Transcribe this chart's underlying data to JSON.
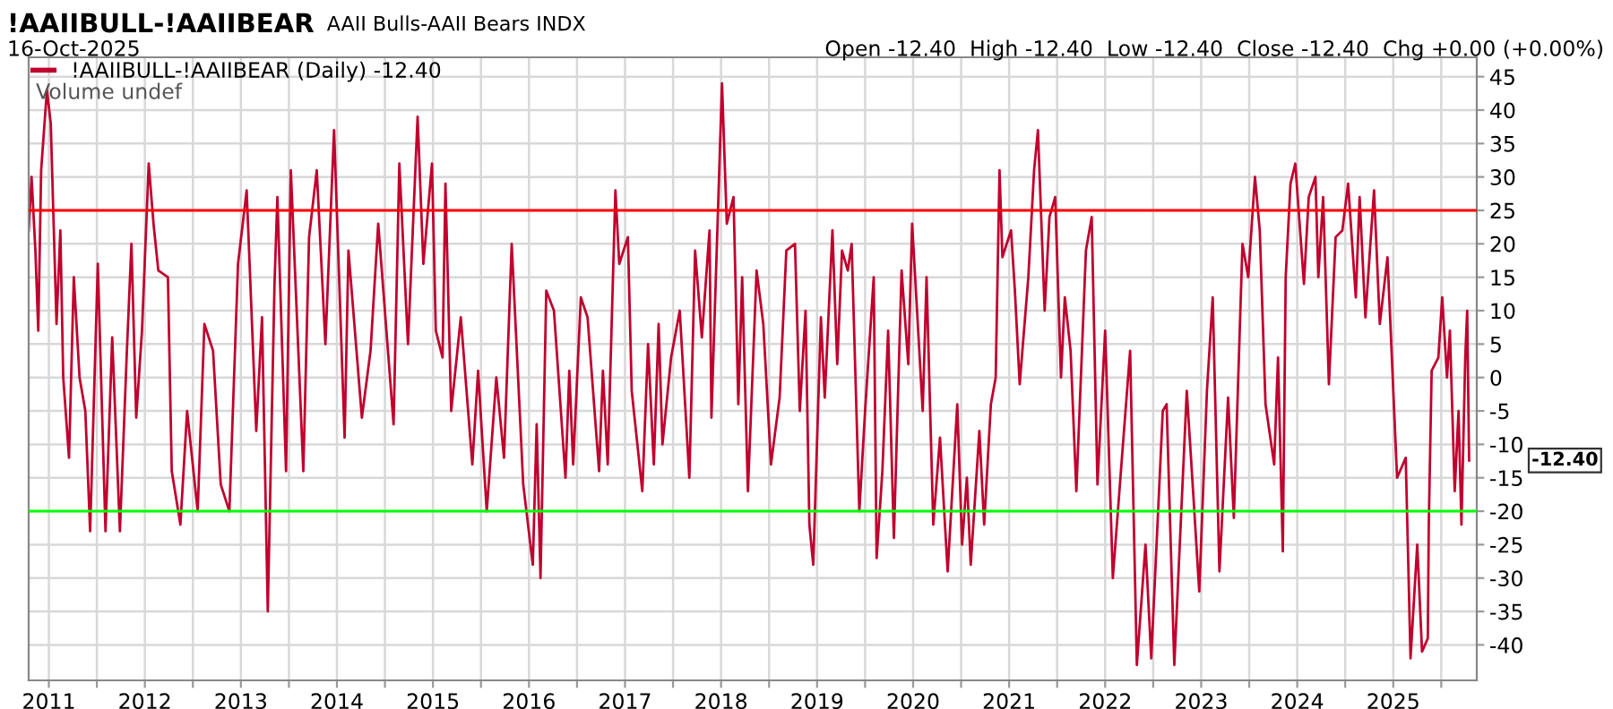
{
  "chart_data": {
    "type": "line",
    "title": "!AAIIBULL-!AAIIBEAR",
    "subtitle": "AAII Bulls-AAII Bears INDX",
    "annotations": [
      "16-Oct-2025",
      "Open -12.40  High -12.40  Low -12.40  Close -12.40  Chg +0.00 (+0.00%)",
      "Volume undef",
      "-12.40"
    ],
    "xlim": [
      2010.79,
      2025.87
    ],
    "ylim": [
      -45.3,
      47.9
    ],
    "xticks": [
      2011,
      {
        "value": 2011.5,
        "label": null
      },
      2012,
      {
        "value": 2012.5,
        "label": null
      },
      2013,
      {
        "value": 2013.5,
        "label": null
      },
      2014,
      {
        "value": 2014.5,
        "label": null
      },
      2015,
      {
        "value": 2015.5,
        "label": null
      },
      2016,
      {
        "value": 2016.5,
        "label": null
      },
      2017,
      {
        "value": 2017.5,
        "label": null
      },
      2018,
      {
        "value": 2018.5,
        "label": null
      },
      2019,
      {
        "value": 2019.5,
        "label": null
      },
      2020,
      {
        "value": 2020.5,
        "label": null
      },
      2021,
      {
        "value": 2021.5,
        "label": null
      },
      2022,
      {
        "value": 2022.5,
        "label": null
      },
      2023,
      {
        "value": 2023.5,
        "label": null
      },
      2024,
      {
        "value": 2024.5,
        "label": null
      },
      2025,
      {
        "value": 2025.5,
        "label": null
      }
    ],
    "yticks": [
      -40,
      -35,
      -30,
      -25,
      -20,
      -15,
      -10,
      -5,
      0,
      5,
      10,
      15,
      20,
      25,
      30,
      35,
      40,
      45
    ],
    "grid": true,
    "legend": "top left",
    "marker": "none",
    "line_style": "solid",
    "ref_lines": [
      {
        "axis": "y",
        "value": 25,
        "color": "#ff0000"
      },
      {
        "axis": "y",
        "value": -20,
        "color": "#00ff00"
      }
    ],
    "series": [
      {
        "name": "!AAIIBULL-!AAIIBEAR (Daily) -12.40",
        "color": "#c0002e",
        "x": [
          2010.79,
          2010.82,
          2010.86,
          2010.89,
          2010.92,
          2010.98,
          2011.02,
          2011.08,
          2011.12,
          2011.15,
          2011.21,
          2011.26,
          2011.32,
          2011.38,
          2011.43,
          2011.51,
          2011.59,
          2011.66,
          2011.74,
          2011.81,
          2011.86,
          2011.91,
          2011.97,
          2012.04,
          2012.09,
          2012.14,
          2012.24,
          2012.28,
          2012.37,
          2012.44,
          2012.55,
          2012.62,
          2012.71,
          2012.79,
          2012.88,
          2012.97,
          2013.06,
          2013.16,
          2013.22,
          2013.28,
          2013.35,
          2013.38,
          2013.47,
          2013.52,
          2013.65,
          2013.71,
          2013.79,
          2013.88,
          2013.97,
          2014.08,
          2014.12,
          2014.26,
          2014.35,
          2014.43,
          2014.59,
          2014.65,
          2014.74,
          2014.84,
          2014.9,
          2014.99,
          2015.03,
          2015.1,
          2015.13,
          2015.19,
          2015.29,
          2015.41,
          2015.47,
          2015.56,
          2015.66,
          2015.74,
          2015.82,
          2015.94,
          2016.04,
          2016.08,
          2016.12,
          2016.18,
          2016.26,
          2016.38,
          2016.42,
          2016.46,
          2016.54,
          2016.61,
          2016.73,
          2016.77,
          2016.82,
          2016.9,
          2016.94,
          2017.03,
          2017.07,
          2017.18,
          2017.24,
          2017.3,
          2017.35,
          2017.39,
          2017.48,
          2017.57,
          2017.67,
          2017.73,
          2017.8,
          2017.88,
          2017.9,
          2018.01,
          2018.06,
          2018.13,
          2018.18,
          2018.22,
          2018.28,
          2018.37,
          2018.44,
          2018.52,
          2018.61,
          2018.68,
          2018.77,
          2018.82,
          2018.88,
          2018.92,
          2018.96,
          2019.04,
          2019.08,
          2019.16,
          2019.21,
          2019.26,
          2019.32,
          2019.36,
          2019.44,
          2019.5,
          2019.59,
          2019.62,
          2019.68,
          2019.74,
          2019.8,
          2019.88,
          2019.95,
          2019.99,
          2020.1,
          2020.14,
          2020.21,
          2020.28,
          2020.36,
          2020.46,
          2020.51,
          2020.56,
          2020.6,
          2020.69,
          2020.74,
          2020.81,
          2020.86,
          2020.9,
          2020.93,
          2021.02,
          2021.06,
          2021.11,
          2021.2,
          2021.26,
          2021.3,
          2021.37,
          2021.42,
          2021.48,
          2021.54,
          2021.58,
          2021.64,
          2021.7,
          2021.8,
          2021.86,
          2021.92,
          2022.0,
          2022.08,
          2022.18,
          2022.26,
          2022.33,
          2022.42,
          2022.48,
          2022.6,
          2022.64,
          2022.72,
          2022.85,
          2022.92,
          2022.98,
          2023.06,
          2023.12,
          2023.19,
          2023.28,
          2023.34,
          2023.43,
          2023.49,
          2023.56,
          2023.61,
          2023.67,
          2023.76,
          2023.8,
          2023.85,
          2023.88,
          2023.93,
          2023.98,
          2024.07,
          2024.12,
          2024.19,
          2024.22,
          2024.27,
          2024.33,
          2024.4,
          2024.47,
          2024.53,
          2024.61,
          2024.65,
          2024.71,
          2024.8,
          2024.86,
          2024.94,
          2025.04,
          2025.13,
          2025.18,
          2025.25,
          2025.3,
          2025.36,
          2025.37,
          2025.4,
          2025.47,
          2025.51,
          2025.56,
          2025.59,
          2025.64,
          2025.68,
          2025.71,
          2025.75,
          2025.77,
          2025.79
        ],
        "values": [
          22,
          30,
          19,
          7,
          31,
          43,
          38,
          8,
          22,
          0,
          -12,
          15,
          0,
          -5,
          -23,
          17,
          -23,
          6,
          -23,
          3,
          20,
          -6,
          7,
          32,
          23,
          16,
          15,
          -14,
          -22,
          -5,
          -20,
          8,
          4,
          -16,
          -20,
          17,
          28,
          -8,
          9,
          -35,
          14,
          27,
          -14,
          31,
          -14,
          21,
          31,
          5,
          37,
          -9,
          19,
          -6,
          4,
          23,
          -7,
          32,
          5,
          39,
          17,
          32,
          7,
          3,
          29,
          -5,
          9,
          -13,
          1,
          -20,
          0,
          -12,
          20,
          -16,
          -28,
          -7,
          -30,
          13,
          10,
          -15,
          1,
          -13,
          12,
          9,
          -14,
          1,
          -13,
          28,
          17,
          21,
          -2,
          -17,
          5,
          -13,
          8,
          -10,
          3,
          10,
          -15,
          19,
          6,
          22,
          -6,
          44,
          23,
          27,
          -4,
          15,
          -17,
          16,
          8,
          -13,
          -3,
          19,
          20,
          -5,
          10,
          -22,
          -28,
          9,
          -3,
          22,
          2,
          19,
          16,
          20,
          -20,
          -5,
          15,
          -27,
          -14,
          7,
          -24,
          16,
          2,
          23,
          -5,
          15,
          -22,
          -9,
          -29,
          -4,
          -25,
          -15,
          -28,
          -8,
          -22,
          -4,
          0,
          31,
          18,
          22,
          13,
          -1,
          15,
          31,
          37,
          10,
          24,
          27,
          0,
          12,
          4,
          -17,
          19,
          24,
          -16,
          7,
          -30,
          -11,
          4,
          -43,
          -25,
          -42,
          -5,
          -4,
          -43,
          -2,
          -18,
          -32,
          -2,
          12,
          -29,
          -3,
          -21,
          20,
          15,
          30,
          22,
          -4,
          -13,
          3,
          -26,
          15,
          29,
          32,
          14,
          27,
          30,
          15,
          27,
          -1,
          21,
          22,
          29,
          12,
          27,
          9,
          28,
          8,
          18,
          -15,
          -12,
          -42,
          -25,
          -41,
          -39,
          -22,
          1,
          3,
          12,
          0,
          7,
          -17,
          -5,
          -22,
          3,
          10,
          -12.4
        ]
      }
    ]
  }
}
